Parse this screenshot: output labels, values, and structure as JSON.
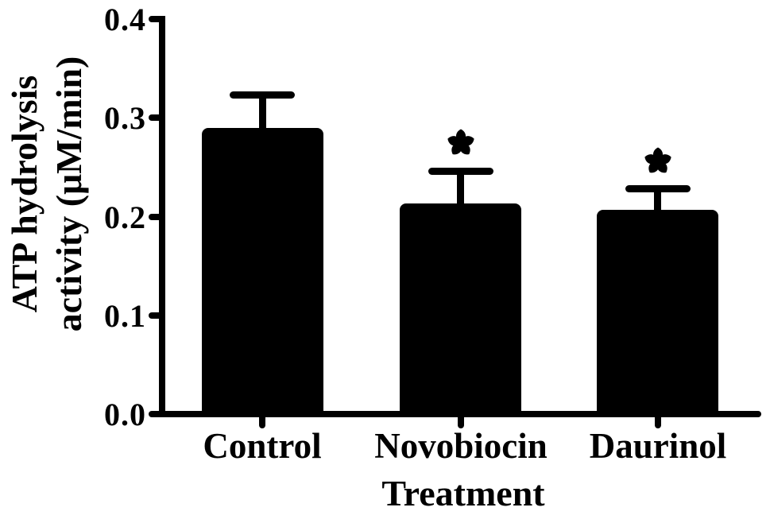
{
  "figure": {
    "background": "#ffffff",
    "ink": "#000000"
  },
  "chart_data": {
    "type": "bar",
    "title": "",
    "xlabel": "Treatment",
    "ylabel": "ATP hydrolysis activity (μM/min)",
    "ylabel_lines": [
      "ATP hydrolysis",
      "activity (μM/min)"
    ],
    "categories": [
      "Control",
      "Novobiocin",
      "Daurinol"
    ],
    "values": [
      0.29,
      0.213,
      0.207
    ],
    "errors_plus": [
      0.033,
      0.033,
      0.021
    ],
    "significance": [
      "",
      "*",
      "*"
    ],
    "ylim": [
      0.0,
      0.4
    ],
    "yticks": [
      "0.0",
      "0.1",
      "0.2",
      "0.3",
      "0.4"
    ],
    "bar_color": "#000000",
    "background": "#ffffff",
    "grid": false,
    "legend": null
  }
}
